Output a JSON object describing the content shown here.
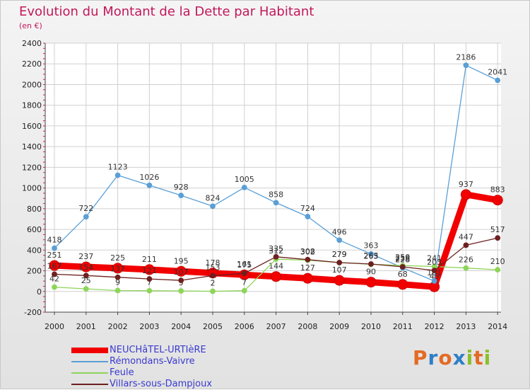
{
  "title": "Evolution du Montant de la Dette par Habitant",
  "subtitle": "(en €)",
  "logo": {
    "text": "Proxiti",
    "letters": [
      {
        "ch": "P",
        "color": "#e46b24"
      },
      {
        "ch": "r",
        "color": "#2f7fc7"
      },
      {
        "ch": "o",
        "color": "#e46b24"
      },
      {
        "ch": "x",
        "color": "#2f7fc7"
      },
      {
        "ch": "i",
        "color": "#8bbf2a"
      },
      {
        "ch": "t",
        "color": "#e46b24"
      },
      {
        "ch": "i",
        "color": "#8bbf2a"
      }
    ]
  },
  "chart_data": {
    "type": "line",
    "categories": [
      "2000",
      "2001",
      "2002",
      "2003",
      "2004",
      "2005",
      "2006",
      "2007",
      "2008",
      "2009",
      "2010",
      "2011",
      "2012",
      "2013",
      "2014"
    ],
    "ylim": [
      -200,
      2400
    ],
    "yticks": [
      -200,
      0,
      200,
      400,
      600,
      800,
      1000,
      1200,
      1400,
      1600,
      1800,
      2000,
      2200,
      2400
    ],
    "grid": true,
    "legend_position": "bottom",
    "series": [
      {
        "name": "NEUCHâTEL-URTIèRE",
        "color": "#f20000",
        "line_width": 9,
        "marker_r": 7,
        "values": [
          251,
          237,
          225,
          211,
          195,
          178,
          161,
          144,
          127,
          107,
          90,
          68,
          45,
          937,
          883
        ],
        "labels": [
          "251",
          "237",
          "225",
          "211",
          "195",
          "178",
          "161",
          "144",
          "127",
          "107",
          "90",
          "68",
          "45",
          "937",
          "883"
        ]
      },
      {
        "name": "Rémondans-Vaivre",
        "color": "#5a9fd6",
        "line_width": 1.3,
        "marker_r": 3.5,
        "values": [
          418,
          722,
          1123,
          1026,
          928,
          824,
          1005,
          858,
          724,
          496,
          363,
          228,
          101,
          2186,
          2041
        ],
        "labels": [
          "418",
          "722",
          "1123",
          "1026",
          "928",
          "824",
          "1005",
          "858",
          "724",
          "496",
          "363",
          "228",
          "101",
          "2186",
          "2041"
        ]
      },
      {
        "name": "Feule",
        "color": "#8ed45a",
        "line_width": 1.3,
        "marker_r": 3.5,
        "values": [
          42,
          25,
          9,
          7,
          5,
          2,
          7,
          312,
          302,
          279,
          263,
          250,
          241,
          226,
          210
        ],
        "labels": [
          "42",
          "25",
          "9",
          "7",
          "5",
          "2",
          "7",
          "312",
          "302",
          "279",
          "263",
          "250",
          "241",
          "226",
          "210"
        ]
      },
      {
        "name": "Villars-sous-Dampjoux",
        "color": "#6e2020",
        "line_width": 1.3,
        "marker_r": 3.5,
        "values": [
          167,
          154,
          137,
          121,
          107,
          153,
          175,
          335,
          308,
          279,
          265,
          238,
          203,
          447,
          517
        ],
        "labels": [
          "167",
          "154",
          "137",
          "121",
          "107",
          "153",
          "175",
          "335",
          "308",
          "279",
          "265",
          "238",
          "203",
          "447",
          "517"
        ]
      }
    ]
  }
}
